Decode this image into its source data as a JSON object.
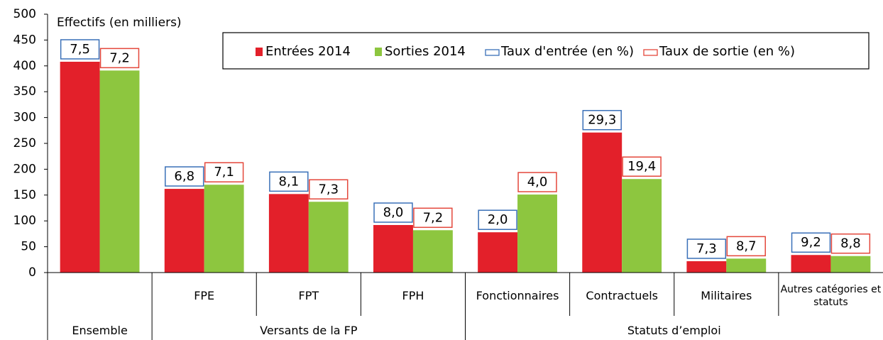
{
  "chart_data": {
    "type": "bar",
    "y_axis_label": "Effectifs (en milliers)",
    "categories": [
      null,
      "FPE",
      "FPT",
      "FPH",
      "Fonctionnaires",
      "Contractuels",
      "Militaires",
      "Autres catégories et statuts"
    ],
    "groups": [
      {
        "label": "Ensemble",
        "span": 1
      },
      {
        "label": "Versants de la FP",
        "span": 3
      },
      {
        "label": "Statuts d’emploi",
        "span": 4
      }
    ],
    "series": [
      {
        "name": "Entrées 2014",
        "color": "#e3202a",
        "values": [
          408,
          162,
          152,
          92,
          78,
          271,
          22,
          34
        ]
      },
      {
        "name": "Sorties 2014",
        "color": "#8dc63f",
        "values": [
          391,
          170,
          137,
          82,
          151,
          181,
          27,
          32
        ]
      },
      {
        "name": "Taux d'entrée (en %)",
        "color": "#3a70b8",
        "values": [
          7.5,
          6.8,
          8.1,
          8.0,
          2.0,
          29.3,
          7.3,
          9.2
        ],
        "value_labels": [
          "7,5",
          "6,8",
          "8,1",
          "8,0",
          "2,0",
          "29,3",
          "7,3",
          "9,2"
        ]
      },
      {
        "name": "Taux de sortie (en %)",
        "color": "#e4473b",
        "values": [
          7.2,
          7.1,
          7.3,
          7.2,
          4.0,
          19.4,
          8.7,
          8.8
        ],
        "value_labels": [
          "7,2",
          "7,1",
          "7,3",
          "7,2",
          "4,0",
          "19,4",
          "8,7",
          "8,8"
        ]
      }
    ],
    "ylim": [
      0,
      500
    ],
    "yticks": [
      0,
      50,
      100,
      150,
      200,
      250,
      300,
      350,
      400,
      450,
      500
    ]
  }
}
